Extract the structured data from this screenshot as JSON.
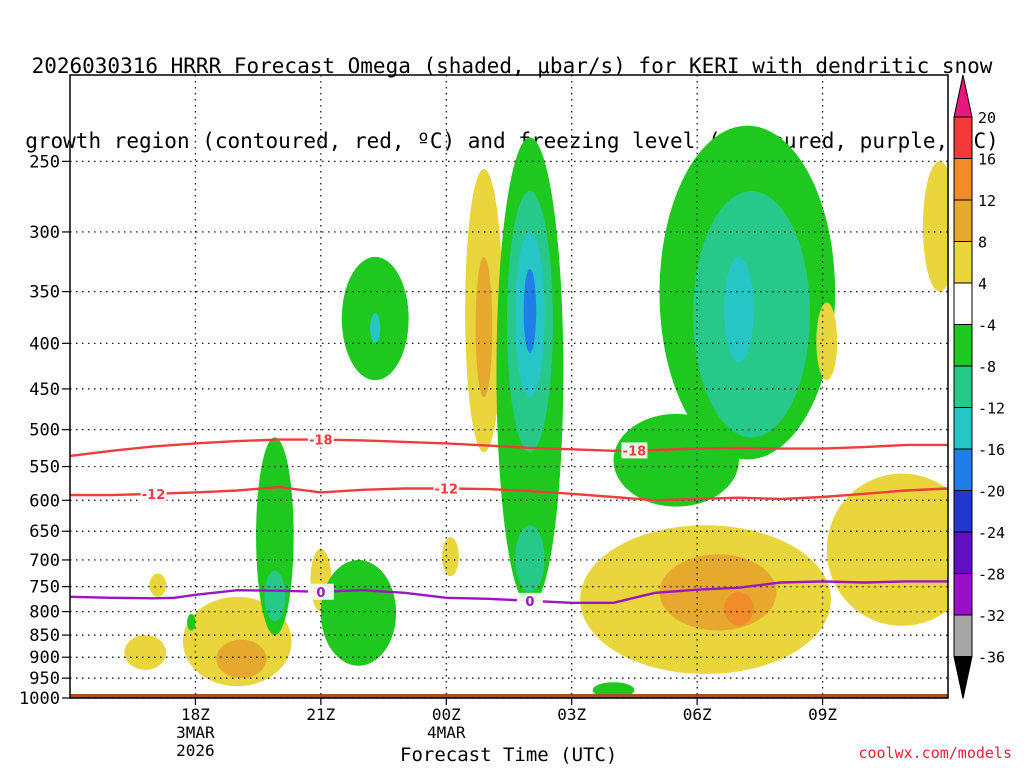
{
  "title": {
    "line1": "2026030316 HRRR Forecast Omega (shaded, μbar/s) for KERI with dendritic snow",
    "line2": "growth region (contoured, red, ºC) and freezing level (contoured, purple, ºC)"
  },
  "credit": "coolwx.com/models",
  "chart_data": {
    "type": "heatmap",
    "xlabel": "Forecast Time (UTC)",
    "ylabel": "",
    "x_range_hours": [
      -3,
      18
    ],
    "y_axis": {
      "scale": "log-pressure",
      "range_hPa": [
        200,
        1000
      ],
      "inverted": true
    },
    "y_ticks": [
      250,
      300,
      350,
      400,
      450,
      500,
      550,
      600,
      650,
      700,
      750,
      800,
      850,
      900,
      950,
      1000
    ],
    "y_tick_labels": [
      "250",
      "300",
      "350",
      "400",
      "450",
      "500",
      "550",
      "600",
      "650",
      "700",
      "750",
      "800",
      "850",
      "900",
      "950",
      "1000"
    ],
    "x_ticks": [
      {
        "hour": 0,
        "lines": [
          "18Z",
          "3MAR",
          "2026"
        ]
      },
      {
        "hour": 3,
        "lines": [
          "21Z"
        ]
      },
      {
        "hour": 6,
        "lines": [
          "00Z",
          "4MAR"
        ]
      },
      {
        "hour": 9,
        "lines": [
          "03Z"
        ]
      },
      {
        "hour": 12,
        "lines": [
          "06Z"
        ]
      },
      {
        "hour": 15,
        "lines": [
          "09Z"
        ]
      }
    ],
    "grid": true,
    "colorbar": {
      "labels": [
        "20",
        "16",
        "12",
        "8",
        "4",
        "-4",
        "-8",
        "-12",
        "-16",
        "-20",
        "-24",
        "-28",
        "-32",
        "-36"
      ],
      "colors_top_to_bottom": [
        "#e8177e",
        "#f23a3a",
        "#f28b2a",
        "#e6a92e",
        "#e8d63c",
        "#ffffff",
        "#1ec81e",
        "#26c98a",
        "#26c6c6",
        "#1f7ee8",
        "#2038cc",
        "#6010c0",
        "#9a10c8",
        "#a6a6a6",
        "#000000"
      ]
    },
    "ground_color": "#a0522d",
    "contours": [
      {
        "name": "dendritic-top",
        "label": "-18",
        "color": "#ee3d3d",
        "points": [
          [
            -3,
            535
          ],
          [
            -2,
            528
          ],
          [
            -1,
            522
          ],
          [
            0,
            518
          ],
          [
            1,
            515
          ],
          [
            2,
            513
          ],
          [
            3,
            513
          ],
          [
            4,
            514
          ],
          [
            5,
            516
          ],
          [
            6,
            518
          ],
          [
            7,
            521
          ],
          [
            8,
            524
          ],
          [
            9,
            526
          ],
          [
            10,
            528
          ],
          [
            11,
            527
          ],
          [
            12,
            525
          ],
          [
            13,
            524
          ],
          [
            14,
            525
          ],
          [
            15,
            525
          ],
          [
            16,
            523
          ],
          [
            17,
            520
          ],
          [
            18,
            520
          ]
        ],
        "label_positions": [
          3.0,
          10.5
        ]
      },
      {
        "name": "dendritic-bottom",
        "label": "-12",
        "color": "#ee3d3d",
        "points": [
          [
            -3,
            592
          ],
          [
            -2,
            592
          ],
          [
            -1,
            590
          ],
          [
            0,
            588
          ],
          [
            1,
            585
          ],
          [
            2,
            580
          ],
          [
            3,
            588
          ],
          [
            4,
            584
          ],
          [
            5,
            582
          ],
          [
            6,
            582
          ],
          [
            7,
            583
          ],
          [
            8,
            586
          ],
          [
            9,
            590
          ],
          [
            10,
            595
          ],
          [
            11,
            600
          ],
          [
            12,
            598
          ],
          [
            13,
            596
          ],
          [
            14,
            598
          ],
          [
            15,
            595
          ],
          [
            16,
            590
          ],
          [
            17,
            585
          ],
          [
            18,
            582
          ]
        ],
        "label_positions": [
          -1.0,
          6.0
        ]
      },
      {
        "name": "freezing-level",
        "label": "0",
        "color": "#9b15c0",
        "points": [
          [
            -3,
            770
          ],
          [
            -2,
            772
          ],
          [
            -1,
            773
          ],
          [
            -0.5,
            772
          ],
          [
            0,
            766
          ],
          [
            1,
            757
          ],
          [
            2,
            758
          ],
          [
            3,
            760
          ],
          [
            4,
            757
          ],
          [
            5,
            762
          ],
          [
            6,
            772
          ],
          [
            7,
            774
          ],
          [
            8,
            778
          ],
          [
            9,
            782
          ],
          [
            10,
            782
          ],
          [
            11,
            762
          ],
          [
            12,
            756
          ],
          [
            13,
            752
          ],
          [
            14,
            742
          ],
          [
            15,
            740
          ],
          [
            16,
            742
          ],
          [
            17,
            740
          ],
          [
            18,
            740
          ]
        ],
        "label_positions": [
          3.0,
          8.0
        ]
      }
    ],
    "shaded_regions": [
      {
        "color": "#e8d63c",
        "center": [
          -1.2,
          880
        ],
        "radius_h": 0.5,
        "top": 850,
        "bottom": 930
      },
      {
        "color": "#e8d63c",
        "center": [
          -0.9,
          740
        ],
        "radius_h": 0.2,
        "top": 725,
        "bottom": 770
      },
      {
        "color": "#e8d63c",
        "center": [
          1.0,
          900
        ],
        "radius_h": 1.3,
        "top": 770,
        "bottom": 970
      },
      {
        "color": "#e6a92e",
        "center": [
          1.1,
          910
        ],
        "radius_h": 0.6,
        "top": 860,
        "bottom": 950
      },
      {
        "color": "#1ec81e",
        "center": [
          -0.1,
          820
        ],
        "radius_h": 0.1,
        "top": 805,
        "bottom": 840
      },
      {
        "color": "#1ec81e",
        "center": [
          1.9,
          650
        ],
        "radius_h": 0.45,
        "top": 510,
        "bottom": 850
      },
      {
        "color": "#26c98a",
        "center": [
          1.9,
          770
        ],
        "radius_h": 0.25,
        "top": 720,
        "bottom": 820
      },
      {
        "color": "#e8d63c",
        "center": [
          3.0,
          730
        ],
        "radius_h": 0.25,
        "top": 680,
        "bottom": 800
      },
      {
        "color": "#1ec81e",
        "center": [
          3.9,
          800
        ],
        "radius_h": 0.9,
        "top": 700,
        "bottom": 920
      },
      {
        "color": "#1ec81e",
        "center": [
          4.3,
          375
        ],
        "radius_h": 0.8,
        "top": 320,
        "bottom": 440
      },
      {
        "color": "#26c6c6",
        "center": [
          4.3,
          385
        ],
        "radius_h": 0.12,
        "top": 370,
        "bottom": 400
      },
      {
        "color": "#e8d63c",
        "center": [
          6.1,
          690
        ],
        "radius_h": 0.2,
        "top": 660,
        "bottom": 730
      },
      {
        "color": "#e8d63c",
        "center": [
          6.9,
          390
        ],
        "radius_h": 0.45,
        "top": 255,
        "bottom": 530
      },
      {
        "color": "#e6a92e",
        "center": [
          6.9,
          380
        ],
        "radius_h": 0.2,
        "top": 320,
        "bottom": 460
      },
      {
        "color": "#1ec81e",
        "center": [
          8.0,
          450
        ],
        "radius_h": 0.8,
        "top": 235,
        "bottom": 790
      },
      {
        "color": "#26c98a",
        "center": [
          8.0,
          400
        ],
        "radius_h": 0.55,
        "top": 270,
        "bottom": 530
      },
      {
        "color": "#26c6c6",
        "center": [
          8.0,
          370
        ],
        "radius_h": 0.35,
        "top": 300,
        "bottom": 460
      },
      {
        "color": "#1f7ee8",
        "center": [
          8.0,
          370
        ],
        "radius_h": 0.15,
        "top": 330,
        "bottom": 410
      },
      {
        "color": "#26c98a",
        "center": [
          8.0,
          700
        ],
        "radius_h": 0.35,
        "top": 640,
        "bottom": 760
      },
      {
        "color": "#1ec81e",
        "center": [
          11.5,
          520
        ],
        "radius_h": 1.5,
        "top": 480,
        "bottom": 610
      },
      {
        "color": "#1ec81e",
        "center": [
          13.2,
          410
        ],
        "radius_h": 2.1,
        "top": 228,
        "bottom": 540
      },
      {
        "color": "#26c98a",
        "center": [
          13.3,
          400
        ],
        "radius_h": 1.4,
        "top": 270,
        "bottom": 510
      },
      {
        "color": "#26c6c6",
        "center": [
          13.0,
          370
        ],
        "radius_h": 0.35,
        "top": 320,
        "bottom": 420
      },
      {
        "color": "#e8d63c",
        "center": [
          12.2,
          790
        ],
        "radius_h": 3.0,
        "top": 640,
        "bottom": 940
      },
      {
        "color": "#e6a92e",
        "center": [
          12.5,
          760
        ],
        "radius_h": 1.4,
        "top": 690,
        "bottom": 840
      },
      {
        "color": "#f28b2a",
        "center": [
          13.0,
          790
        ],
        "radius_h": 0.35,
        "top": 760,
        "bottom": 830
      },
      {
        "color": "#e8d63c",
        "center": [
          16.9,
          670
        ],
        "radius_h": 1.8,
        "top": 560,
        "bottom": 830
      },
      {
        "color": "#e8d63c",
        "center": [
          17.8,
          300
        ],
        "radius_h": 0.4,
        "top": 250,
        "bottom": 350
      },
      {
        "color": "#e8d63c",
        "center": [
          15.1,
          400
        ],
        "radius_h": 0.25,
        "top": 360,
        "bottom": 440
      },
      {
        "color": "#1ec81e",
        "center": [
          10.0,
          980
        ],
        "radius_h": 0.5,
        "top": 960,
        "bottom": 1000
      }
    ]
  }
}
